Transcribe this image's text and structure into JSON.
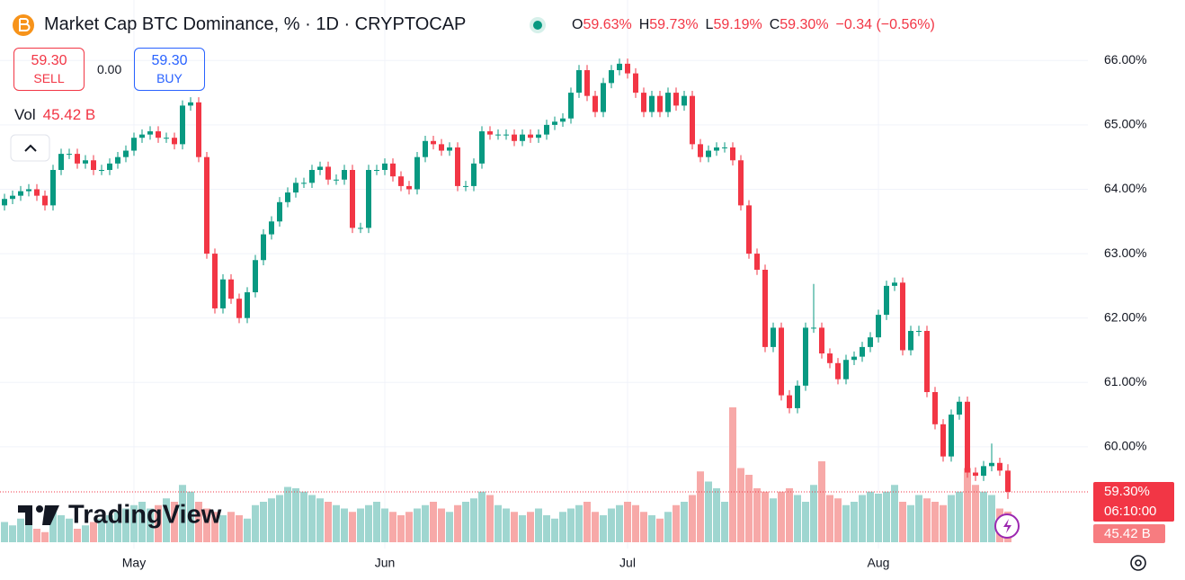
{
  "chart_data": {
    "type": "candlestick",
    "title": "Market Cap BTC Dominance, % · 1D · CRYPTOCAP",
    "ohlc_legend": [
      {
        "key": "O",
        "value": "59.63%"
      },
      {
        "key": "H",
        "value": "59.73%"
      },
      {
        "key": "L",
        "value": "59.19%"
      },
      {
        "key": "C",
        "value": "59.30%"
      }
    ],
    "change": "−0.34 (−0.56%)",
    "trade": {
      "sell_price": "59.30",
      "sell": "SELL",
      "spread": "0.00",
      "buy_price": "59.30",
      "buy": "BUY"
    },
    "volume_legend": {
      "label": "Vol",
      "value": "45.42 B"
    },
    "price_tags": {
      "last": "59.30%",
      "countdown": "06:10:00",
      "volume": "45.42 B"
    },
    "watermark": "TradingView",
    "up_color": "#089981",
    "down_color": "#f23645",
    "volume_up_color": "#9fd6d0",
    "volume_down_color": "#f7a9a8",
    "grid": true,
    "ylim": [
      58.42,
      66.87
    ],
    "yticks": [
      {
        "value": 60,
        "label": "60.00%"
      },
      {
        "value": 61,
        "label": "61.00%"
      },
      {
        "value": 62,
        "label": "62.00%"
      },
      {
        "value": 63,
        "label": "63.00%"
      },
      {
        "value": 64,
        "label": "64.00%"
      },
      {
        "value": 65,
        "label": "65.00%"
      },
      {
        "value": 66,
        "label": "66.00%"
      }
    ],
    "categories": [
      null,
      null,
      null,
      null,
      null,
      null,
      null,
      null,
      null,
      null,
      null,
      null,
      null,
      null,
      null,
      null,
      "May",
      null,
      null,
      null,
      null,
      null,
      null,
      null,
      null,
      null,
      null,
      null,
      null,
      null,
      null,
      null,
      null,
      null,
      null,
      null,
      null,
      null,
      null,
      null,
      null,
      null,
      null,
      null,
      null,
      null,
      null,
      "Jun",
      null,
      null,
      null,
      null,
      null,
      null,
      null,
      null,
      null,
      null,
      null,
      null,
      null,
      null,
      null,
      null,
      null,
      null,
      null,
      null,
      null,
      null,
      null,
      null,
      null,
      null,
      null,
      null,
      null,
      "Jul",
      null,
      null,
      null,
      null,
      null,
      null,
      null,
      null,
      null,
      null,
      null,
      null,
      null,
      null,
      null,
      null,
      null,
      null,
      null,
      null,
      null,
      null,
      null,
      null,
      null,
      null,
      null,
      null,
      null,
      null,
      "Aug",
      null,
      null,
      null,
      null,
      null,
      null,
      null,
      null,
      null,
      null,
      null,
      null,
      null,
      null,
      null,
      null
    ],
    "open": [
      63.75,
      63.85,
      63.9,
      63.97,
      64.0,
      63.9,
      63.75,
      64.3,
      64.55,
      64.55,
      64.4,
      64.45,
      64.3,
      64.3,
      64.4,
      64.5,
      64.6,
      64.8,
      64.85,
      64.9,
      64.8,
      64.8,
      64.7,
      65.3,
      65.35,
      64.5,
      63.0,
      62.15,
      62.6,
      62.3,
      62.0,
      62.4,
      62.9,
      63.3,
      63.5,
      63.8,
      63.95,
      64.1,
      64.1,
      64.3,
      64.35,
      64.15,
      64.15,
      64.3,
      63.4,
      63.4,
      64.3,
      64.3,
      64.4,
      64.2,
      64.05,
      64.0,
      64.5,
      64.75,
      64.7,
      64.6,
      64.65,
      64.05,
      64.05,
      64.4,
      64.9,
      64.85,
      64.85,
      64.85,
      64.75,
      64.85,
      64.8,
      64.85,
      65.0,
      65.05,
      65.1,
      65.5,
      65.85,
      65.45,
      65.2,
      65.65,
      65.85,
      65.95,
      65.8,
      65.5,
      65.2,
      65.45,
      65.2,
      65.5,
      65.3,
      65.45,
      64.7,
      64.5,
      64.6,
      64.65,
      64.65,
      64.45,
      63.75,
      63.0,
      62.75,
      61.55,
      61.85,
      60.8,
      60.6,
      60.95,
      61.85,
      61.85,
      61.45,
      61.3,
      61.05,
      61.35,
      61.4,
      61.55,
      61.7,
      62.05,
      62.5,
      62.55,
      61.5,
      61.8,
      61.8,
      60.85,
      60.35,
      59.85,
      60.5,
      60.7,
      59.6,
      59.55,
      59.7,
      59.75,
      59.63
    ],
    "high": [
      63.93,
      63.98,
      64.05,
      64.08,
      64.08,
      63.98,
      64.38,
      64.63,
      64.63,
      64.63,
      64.53,
      64.53,
      64.38,
      64.48,
      64.58,
      64.68,
      64.88,
      64.93,
      64.98,
      64.98,
      64.88,
      64.88,
      65.38,
      65.43,
      65.43,
      64.58,
      63.08,
      62.68,
      62.68,
      62.38,
      62.48,
      62.98,
      63.38,
      63.58,
      63.88,
      64.03,
      64.18,
      64.18,
      64.38,
      64.43,
      64.43,
      64.23,
      64.38,
      64.38,
      63.48,
      64.38,
      64.38,
      64.48,
      64.48,
      64.28,
      64.13,
      64.58,
      64.83,
      64.83,
      64.78,
      64.73,
      64.73,
      64.13,
      64.48,
      64.98,
      64.98,
      64.93,
      64.93,
      64.93,
      64.93,
      64.93,
      64.93,
      65.08,
      65.13,
      65.18,
      65.58,
      65.93,
      65.93,
      65.53,
      65.73,
      65.93,
      66.03,
      66.03,
      65.88,
      65.58,
      65.53,
      65.53,
      65.58,
      65.58,
      65.53,
      65.53,
      64.78,
      64.68,
      64.73,
      64.73,
      64.73,
      64.53,
      63.83,
      63.08,
      62.83,
      61.93,
      61.93,
      60.88,
      61.03,
      61.93,
      62.53,
      61.93,
      61.53,
      61.38,
      61.43,
      61.48,
      61.63,
      61.78,
      62.13,
      62.58,
      62.63,
      62.63,
      61.88,
      61.88,
      61.88,
      60.93,
      60.43,
      60.58,
      60.78,
      60.78,
      59.68,
      59.78,
      60.05,
      59.83,
      59.73
    ],
    "low": [
      63.67,
      63.77,
      63.82,
      63.89,
      63.82,
      63.67,
      63.67,
      64.22,
      64.47,
      64.32,
      64.32,
      64.22,
      64.22,
      64.22,
      64.32,
      64.42,
      64.52,
      64.72,
      64.77,
      64.72,
      64.72,
      64.62,
      64.62,
      65.22,
      64.42,
      62.92,
      62.07,
      62.07,
      62.22,
      61.92,
      61.92,
      62.32,
      62.82,
      63.22,
      63.42,
      63.72,
      63.87,
      64.02,
      64.02,
      64.22,
      64.07,
      64.07,
      64.07,
      63.32,
      63.32,
      63.32,
      64.22,
      64.22,
      64.12,
      63.97,
      63.92,
      63.92,
      64.42,
      64.62,
      64.52,
      64.52,
      63.97,
      63.97,
      63.97,
      64.32,
      64.77,
      64.77,
      64.77,
      64.67,
      64.67,
      64.72,
      64.72,
      64.77,
      64.92,
      64.97,
      65.02,
      65.42,
      65.37,
      65.12,
      65.12,
      65.57,
      65.77,
      65.72,
      65.42,
      65.12,
      65.12,
      65.12,
      65.12,
      65.22,
      65.22,
      64.62,
      64.42,
      64.42,
      64.52,
      64.57,
      64.37,
      63.67,
      62.92,
      62.67,
      61.47,
      61.47,
      60.72,
      60.52,
      60.52,
      60.87,
      61.77,
      61.37,
      61.22,
      60.97,
      60.97,
      61.27,
      61.32,
      61.47,
      61.62,
      61.97,
      62.42,
      61.42,
      61.42,
      61.72,
      60.77,
      60.27,
      59.77,
      59.77,
      60.42,
      59.52,
      59.47,
      59.47,
      59.62,
      59.55,
      59.19
    ],
    "close": [
      63.85,
      63.9,
      63.97,
      64.0,
      63.9,
      63.75,
      64.3,
      64.55,
      64.55,
      64.4,
      64.45,
      64.3,
      64.3,
      64.4,
      64.5,
      64.6,
      64.8,
      64.85,
      64.9,
      64.8,
      64.8,
      64.7,
      65.3,
      65.35,
      64.5,
      63.0,
      62.15,
      62.6,
      62.3,
      62.0,
      62.4,
      62.9,
      63.3,
      63.5,
      63.8,
      63.95,
      64.1,
      64.1,
      64.3,
      64.35,
      64.15,
      64.15,
      64.3,
      63.4,
      63.4,
      64.3,
      64.3,
      64.4,
      64.2,
      64.05,
      64.0,
      64.5,
      64.75,
      64.7,
      64.6,
      64.65,
      64.05,
      64.05,
      64.4,
      64.9,
      64.85,
      64.85,
      64.85,
      64.75,
      64.85,
      64.8,
      64.85,
      65.0,
      65.05,
      65.1,
      65.5,
      65.85,
      65.45,
      65.2,
      65.65,
      65.85,
      65.95,
      65.8,
      65.5,
      65.2,
      65.45,
      65.2,
      65.5,
      65.3,
      65.45,
      64.7,
      64.5,
      64.6,
      64.65,
      64.65,
      64.45,
      63.75,
      63.0,
      62.75,
      61.55,
      61.85,
      60.8,
      60.6,
      60.95,
      61.85,
      61.85,
      61.45,
      61.3,
      61.05,
      61.35,
      61.4,
      61.55,
      61.7,
      62.05,
      62.5,
      62.55,
      61.5,
      61.8,
      61.8,
      60.85,
      60.35,
      59.85,
      60.5,
      60.7,
      59.6,
      59.55,
      59.7,
      59.75,
      59.63,
      59.3
    ],
    "volume": [
      30,
      25,
      35,
      30,
      20,
      15,
      45,
      40,
      35,
      20,
      25,
      30,
      35,
      40,
      45,
      50,
      55,
      60,
      50,
      55,
      65,
      60,
      85,
      75,
      60,
      50,
      45,
      40,
      45,
      40,
      35,
      55,
      60,
      65,
      70,
      82,
      80,
      75,
      70,
      65,
      60,
      55,
      50,
      45,
      50,
      55,
      60,
      50,
      45,
      40,
      45,
      50,
      55,
      60,
      50,
      45,
      55,
      60,
      65,
      75,
      70,
      55,
      50,
      45,
      40,
      45,
      50,
      40,
      35,
      45,
      50,
      55,
      60,
      45,
      40,
      50,
      55,
      60,
      55,
      45,
      40,
      35,
      45,
      55,
      60,
      70,
      105,
      90,
      80,
      60,
      200,
      110,
      100,
      80,
      75,
      65,
      75,
      80,
      70,
      60,
      85,
      120,
      70,
      65,
      55,
      60,
      70,
      75,
      72,
      75,
      85,
      60,
      55,
      70,
      65,
      60,
      55,
      70,
      75,
      110,
      85,
      75,
      70,
      50,
      45.42
    ]
  }
}
